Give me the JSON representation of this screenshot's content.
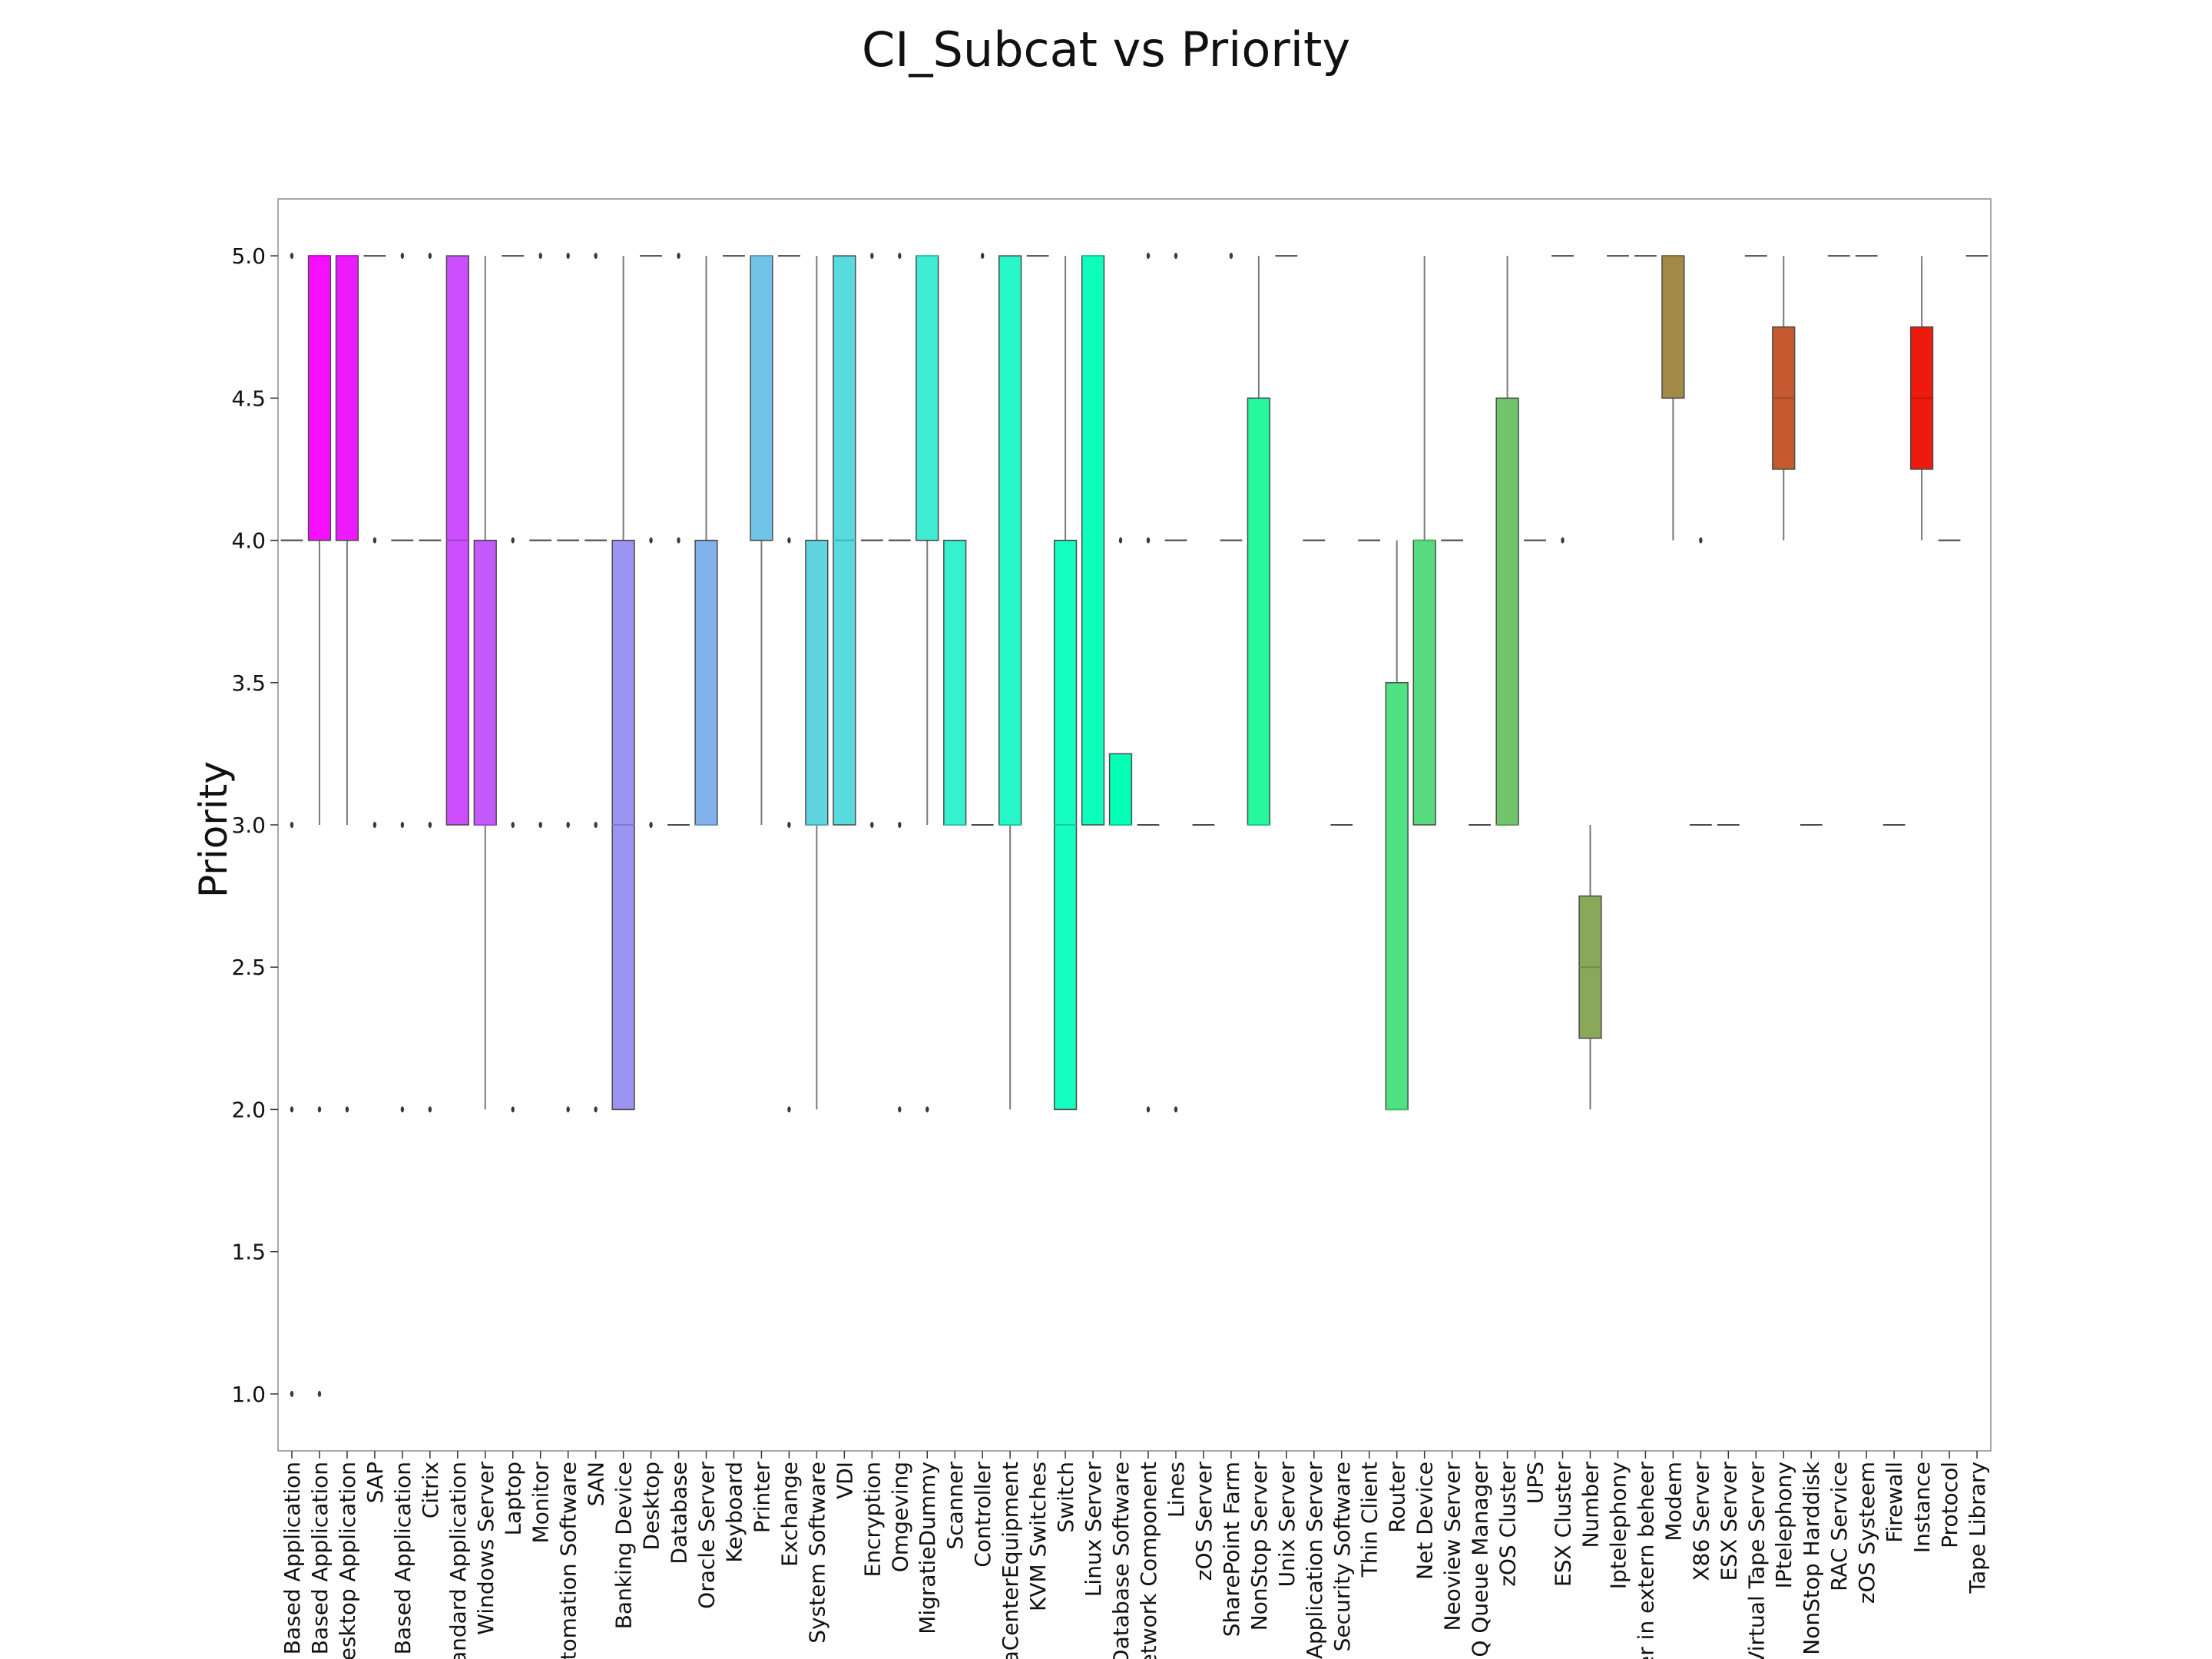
{
  "chart_data": {
    "type": "box",
    "title": "CI_Subcat vs Priority",
    "xlabel": "",
    "ylabel": "Priority",
    "ylim": [
      0.8,
      5.2
    ],
    "yticks": [
      "1.0",
      "1.5",
      "2.0",
      "2.5",
      "3.0",
      "3.5",
      "4.0",
      "4.5",
      "5.0"
    ],
    "palette": "rainbow",
    "grid": false,
    "categories": [
      "Web Based Application",
      "Web Based Application",
      "Desktop Application",
      "SAP",
      "Client Based Application",
      "Citrix",
      "Standard Application",
      "Windows Server",
      "Laptop",
      "Monitor",
      "Automation Software",
      "SAN",
      "Banking Device",
      "Desktop",
      "Database",
      "Oracle Server",
      "Keyboard",
      "Printer",
      "Exchange",
      "System Software",
      "VDI",
      "Encryption",
      "Omgeving",
      "MigratieDummy",
      "Scanner",
      "Controller",
      "DataCenterEquipment",
      "KVM Switches",
      "Switch",
      "Linux Server",
      "Database Software",
      "Network Component",
      "Lines",
      "zOS Server",
      "SharePoint Farm",
      "NonStop Server",
      "Unix Server",
      "Application Server",
      "Security Software",
      "Thin Client",
      "Router",
      "Net Device",
      "Neoview Server",
      "MQ Queue Manager",
      "zOS Cluster",
      "UPS",
      "ESX Cluster",
      "Number",
      "Iptelephony",
      "Server in extern beheer",
      "Modem",
      "X86 Server",
      "ESX Server",
      "Virtual Tape Server",
      "IPtelephony",
      "NonStop Harddisk",
      "RAC Service",
      "zOS Systeem",
      "Firewall",
      "Instance",
      "Protocol",
      "Tape Library"
    ],
    "boxes": [
      {
        "q1": 4,
        "med": 4,
        "q3": 4,
        "wlo": 4,
        "whi": 4,
        "fliers": [
          5,
          3,
          2,
          1
        ]
      },
      {
        "q1": 4,
        "med": 5,
        "q3": 5,
        "wlo": 3,
        "whi": 5,
        "fliers": [
          2,
          1
        ]
      },
      {
        "q1": 4,
        "med": 5,
        "q3": 5,
        "wlo": 3,
        "whi": 5,
        "fliers": [
          2
        ]
      },
      {
        "q1": 5,
        "med": 5,
        "q3": 5,
        "wlo": 5,
        "whi": 5,
        "fliers": [
          4,
          3
        ]
      },
      {
        "q1": 4,
        "med": 4,
        "q3": 4,
        "wlo": 4,
        "whi": 4,
        "fliers": [
          5,
          3,
          2
        ]
      },
      {
        "q1": 4,
        "med": 4,
        "q3": 4,
        "wlo": 4,
        "whi": 4,
        "fliers": [
          5,
          3,
          2
        ]
      },
      {
        "q1": 3,
        "med": 4,
        "q3": 5,
        "wlo": 3,
        "whi": 5,
        "fliers": []
      },
      {
        "q1": 3,
        "med": 3,
        "q3": 4,
        "wlo": 2,
        "whi": 5,
        "fliers": []
      },
      {
        "q1": 5,
        "med": 5,
        "q3": 5,
        "wlo": 5,
        "whi": 5,
        "fliers": [
          4,
          3,
          2
        ]
      },
      {
        "q1": 4,
        "med": 4,
        "q3": 4,
        "wlo": 4,
        "whi": 4,
        "fliers": [
          5,
          3
        ]
      },
      {
        "q1": 4,
        "med": 4,
        "q3": 4,
        "wlo": 4,
        "whi": 4,
        "fliers": [
          5,
          3,
          2
        ]
      },
      {
        "q1": 4,
        "med": 4,
        "q3": 4,
        "wlo": 4,
        "whi": 4,
        "fliers": [
          5,
          3,
          2
        ]
      },
      {
        "q1": 2,
        "med": 3,
        "q3": 4,
        "wlo": 2,
        "whi": 5,
        "fliers": []
      },
      {
        "q1": 5,
        "med": 5,
        "q3": 5,
        "wlo": 5,
        "whi": 5,
        "fliers": [
          4,
          3
        ]
      },
      {
        "q1": 3,
        "med": 3,
        "q3": 3,
        "wlo": 3,
        "whi": 3,
        "fliers": [
          5,
          4
        ]
      },
      {
        "q1": 3,
        "med": 3,
        "q3": 4,
        "wlo": 3,
        "whi": 5,
        "fliers": []
      },
      {
        "q1": 5,
        "med": 5,
        "q3": 5,
        "wlo": 5,
        "whi": 5,
        "fliers": []
      },
      {
        "q1": 4,
        "med": 5,
        "q3": 5,
        "wlo": 3,
        "whi": 5,
        "fliers": []
      },
      {
        "q1": 5,
        "med": 5,
        "q3": 5,
        "wlo": 5,
        "whi": 5,
        "fliers": [
          4,
          3,
          2
        ]
      },
      {
        "q1": 3,
        "med": 3,
        "q3": 4,
        "wlo": 2,
        "whi": 5,
        "fliers": []
      },
      {
        "q1": 3,
        "med": 4,
        "q3": 5,
        "wlo": 3,
        "whi": 5,
        "fliers": []
      },
      {
        "q1": 4,
        "med": 4,
        "q3": 4,
        "wlo": 4,
        "whi": 4,
        "fliers": [
          5,
          3
        ]
      },
      {
        "q1": 4,
        "med": 4,
        "q3": 4,
        "wlo": 4,
        "whi": 4,
        "fliers": [
          5,
          3,
          2
        ]
      },
      {
        "q1": 4,
        "med": 5,
        "q3": 5,
        "wlo": 3,
        "whi": 5,
        "fliers": [
          2
        ]
      },
      {
        "q1": 3,
        "med": 3,
        "q3": 4,
        "wlo": 3,
        "whi": 4,
        "fliers": []
      },
      {
        "q1": 3,
        "med": 3,
        "q3": 3,
        "wlo": 3,
        "whi": 3,
        "fliers": [
          5
        ]
      },
      {
        "q1": 3,
        "med": 3,
        "q3": 5,
        "wlo": 2,
        "whi": 5,
        "fliers": []
      },
      {
        "q1": 5,
        "med": 5,
        "q3": 5,
        "wlo": 5,
        "whi": 5,
        "fliers": []
      },
      {
        "q1": 2,
        "med": 3,
        "q3": 4,
        "wlo": 2,
        "whi": 5,
        "fliers": []
      },
      {
        "q1": 3,
        "med": 5,
        "q3": 5,
        "wlo": 3,
        "whi": 5,
        "fliers": []
      },
      {
        "q1": 3,
        "med": 3,
        "q3": 3.25,
        "wlo": 3,
        "whi": 3.25,
        "fliers": [
          4
        ]
      },
      {
        "q1": 3,
        "med": 3,
        "q3": 3,
        "wlo": 3,
        "whi": 3,
        "fliers": [
          5,
          4,
          2
        ]
      },
      {
        "q1": 4,
        "med": 4,
        "q3": 4,
        "wlo": 4,
        "whi": 4,
        "fliers": [
          5,
          2
        ]
      },
      {
        "q1": 3,
        "med": 3,
        "q3": 3,
        "wlo": 3,
        "whi": 3,
        "fliers": []
      },
      {
        "q1": 4,
        "med": 4,
        "q3": 4,
        "wlo": 4,
        "whi": 4,
        "fliers": [
          5
        ]
      },
      {
        "q1": 3,
        "med": 3,
        "q3": 4.5,
        "wlo": 3,
        "whi": 5,
        "fliers": []
      },
      {
        "q1": 5,
        "med": 5,
        "q3": 5,
        "wlo": 5,
        "whi": 5,
        "fliers": []
      },
      {
        "q1": 4,
        "med": 4,
        "q3": 4,
        "wlo": 4,
        "whi": 4,
        "fliers": []
      },
      {
        "q1": 3,
        "med": 3,
        "q3": 3,
        "wlo": 3,
        "whi": 3,
        "fliers": []
      },
      {
        "q1": 4,
        "med": 4,
        "q3": 4,
        "wlo": 4,
        "whi": 4,
        "fliers": []
      },
      {
        "q1": 2,
        "med": 2,
        "q3": 3.5,
        "wlo": 2,
        "whi": 4,
        "fliers": []
      },
      {
        "q1": 3,
        "med": 4,
        "q3": 4,
        "wlo": 3,
        "whi": 5,
        "fliers": []
      },
      {
        "q1": 4,
        "med": 4,
        "q3": 4,
        "wlo": 4,
        "whi": 4,
        "fliers": []
      },
      {
        "q1": 3,
        "med": 3,
        "q3": 3,
        "wlo": 3,
        "whi": 3,
        "fliers": []
      },
      {
        "q1": 3,
        "med": 3,
        "q3": 4.5,
        "wlo": 3,
        "whi": 5,
        "fliers": []
      },
      {
        "q1": 4,
        "med": 4,
        "q3": 4,
        "wlo": 4,
        "whi": 4,
        "fliers": []
      },
      {
        "q1": 5,
        "med": 5,
        "q3": 5,
        "wlo": 5,
        "whi": 5,
        "fliers": [
          4
        ]
      },
      {
        "q1": 2.25,
        "med": 2.5,
        "q3": 2.75,
        "wlo": 2,
        "whi": 3,
        "fliers": []
      },
      {
        "q1": 5,
        "med": 5,
        "q3": 5,
        "wlo": 5,
        "whi": 5,
        "fliers": []
      },
      {
        "q1": 5,
        "med": 5,
        "q3": 5,
        "wlo": 5,
        "whi": 5,
        "fliers": []
      },
      {
        "q1": 4.5,
        "med": 5,
        "q3": 5,
        "wlo": 4,
        "whi": 5,
        "fliers": []
      },
      {
        "q1": 3,
        "med": 3,
        "q3": 3,
        "wlo": 3,
        "whi": 3,
        "fliers": [
          4
        ]
      },
      {
        "q1": 3,
        "med": 3,
        "q3": 3,
        "wlo": 3,
        "whi": 3,
        "fliers": []
      },
      {
        "q1": 5,
        "med": 5,
        "q3": 5,
        "wlo": 5,
        "whi": 5,
        "fliers": []
      },
      {
        "q1": 4.25,
        "med": 4.5,
        "q3": 4.75,
        "wlo": 4,
        "whi": 5,
        "fliers": []
      },
      {
        "q1": 3,
        "med": 3,
        "q3": 3,
        "wlo": 3,
        "whi": 3,
        "fliers": []
      },
      {
        "q1": 5,
        "med": 5,
        "q3": 5,
        "wlo": 5,
        "whi": 5,
        "fliers": []
      },
      {
        "q1": 5,
        "med": 5,
        "q3": 5,
        "wlo": 5,
        "whi": 5,
        "fliers": []
      },
      {
        "q1": 3,
        "med": 3,
        "q3": 3,
        "wlo": 3,
        "whi": 3,
        "fliers": []
      },
      {
        "q1": 4.25,
        "med": 4.5,
        "q3": 4.75,
        "wlo": 4,
        "whi": 5,
        "fliers": []
      },
      {
        "q1": 4,
        "med": 4,
        "q3": 4,
        "wlo": 4,
        "whi": 4,
        "fliers": []
      },
      {
        "q1": 5,
        "med": 5,
        "q3": 5,
        "wlo": 5,
        "whi": 5,
        "fliers": []
      }
    ]
  }
}
